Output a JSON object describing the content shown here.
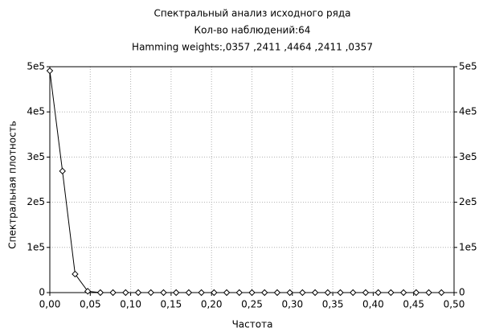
{
  "chart_data": {
    "type": "line",
    "title": "Спектральный анализ исходного ряда",
    "subtitle": "Кол-во наблюдений:64",
    "annotation": "Hamming weights:,0357 ,2411 ,4464 ,2411 ,0357",
    "xlabel": "Частота",
    "ylabel": "Спектральная плотность",
    "x": [
      0,
      0.015625,
      0.03125,
      0.046875,
      0.0625,
      0.078125,
      0.09375,
      0.109375,
      0.125,
      0.140625,
      0.15625,
      0.171875,
      0.1875,
      0.203125,
      0.21875,
      0.234375,
      0.25,
      0.265625,
      0.28125,
      0.296875,
      0.3125,
      0.328125,
      0.34375,
      0.359375,
      0.375,
      0.390625,
      0.40625,
      0.421875,
      0.4375,
      0.453125,
      0.46875,
      0.484375
    ],
    "values": [
      491000,
      269000,
      41000,
      3000,
      0,
      0,
      0,
      0,
      0,
      0,
      0,
      0,
      0,
      0,
      0,
      0,
      0,
      0,
      0,
      0,
      0,
      0,
      0,
      0,
      0,
      0,
      0,
      0,
      0,
      0,
      0,
      0
    ],
    "color": "#000000",
    "xlim": [
      0,
      0.5
    ],
    "xticks": [
      {
        "value": 0,
        "label": "0,00"
      },
      {
        "value": 0.05,
        "label": "0,05"
      },
      {
        "value": 0.1,
        "label": "0,10"
      },
      {
        "value": 0.15,
        "label": "0,15"
      },
      {
        "value": 0.2,
        "label": "0,20"
      },
      {
        "value": 0.25,
        "label": "0,25"
      },
      {
        "value": 0.3,
        "label": "0,30"
      },
      {
        "value": 0.35,
        "label": "0,35"
      },
      {
        "value": 0.4,
        "label": "0,40"
      },
      {
        "value": 0.45,
        "label": "0,45"
      },
      {
        "value": 0.5,
        "label": "0,50"
      }
    ],
    "ylim": [
      0,
      500000
    ],
    "yticks": [
      0,
      {
        "value": 100000,
        "label": "1e5"
      },
      {
        "value": 200000,
        "label": "2e5"
      },
      {
        "value": 300000,
        "label": "3e5"
      },
      {
        "value": 400000,
        "label": "4e5"
      },
      {
        "value": 500000,
        "label": "5e5"
      }
    ],
    "y2lim": [
      0,
      500000
    ],
    "y2ticks": [
      0,
      {
        "value": 100000,
        "label": "1e5"
      },
      {
        "value": 200000,
        "label": "2e5"
      },
      {
        "value": 300000,
        "label": "3e5"
      },
      {
        "value": 400000,
        "label": "4e5"
      },
      {
        "value": 500000,
        "label": "5e5"
      }
    ],
    "grid": true
  }
}
